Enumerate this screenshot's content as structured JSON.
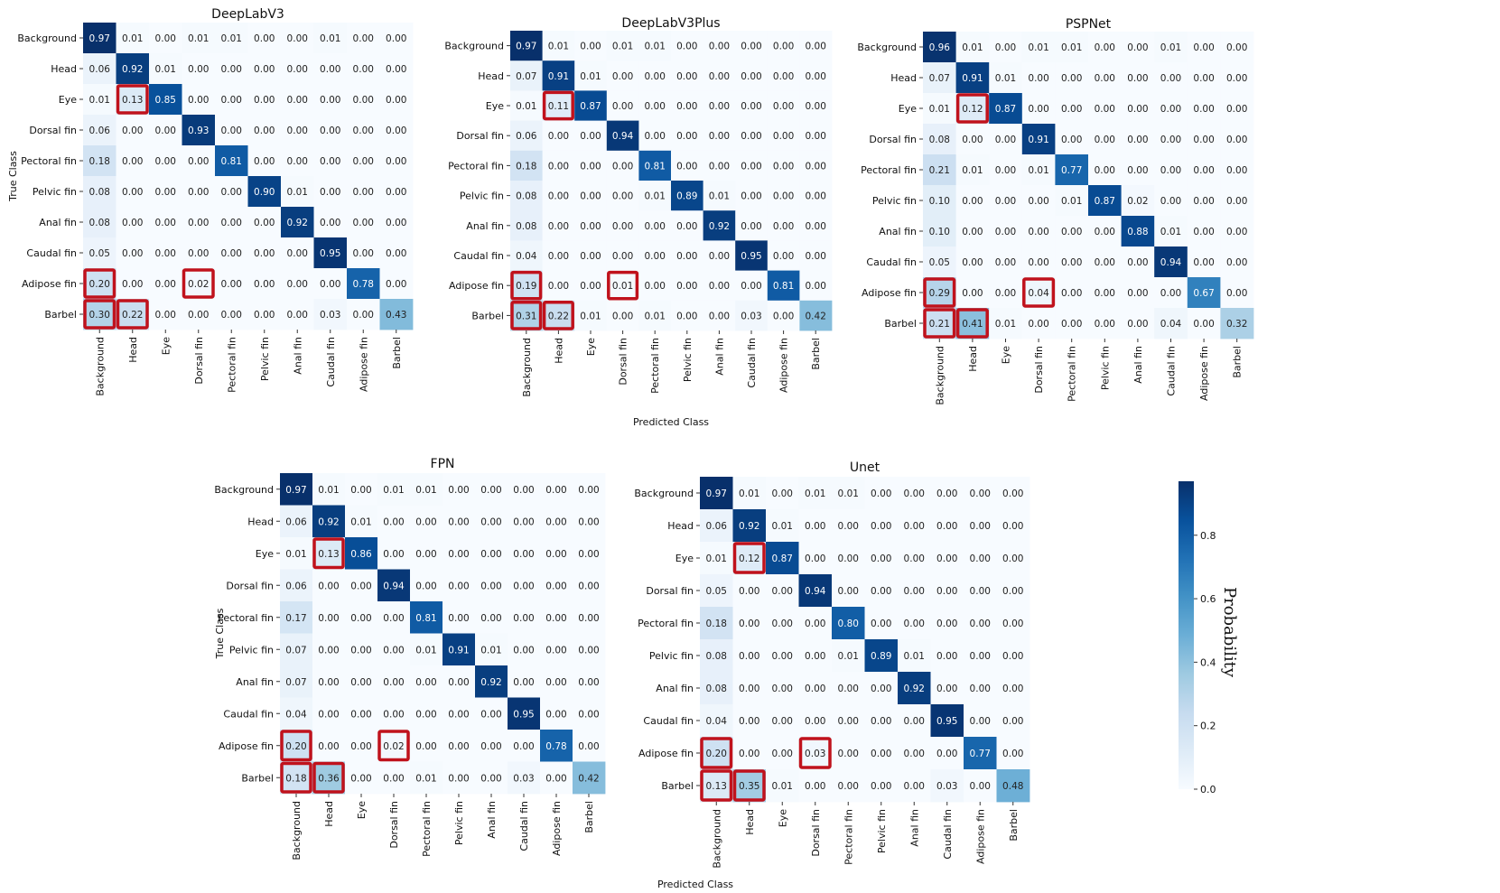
{
  "chart_data": [
    {
      "type": "heatmap",
      "title": "DeepLabV3",
      "ylabel": "True Class",
      "xlabel": "",
      "row_labels": [
        "Background",
        "Head",
        "Eye",
        "Dorsal fin",
        "Pectoral fin",
        "Pelvic fin",
        "Anal fin",
        "Caudal fin",
        "Adipose fin",
        "Barbel"
      ],
      "col_labels": [
        "Background",
        "Head",
        "Eye",
        "Dorsal fin",
        "Pectoral fin",
        "Pelvic fin",
        "Anal fin",
        "Caudal fin",
        "Adipose fin",
        "Barbel"
      ],
      "values": [
        [
          0.97,
          0.01,
          0.0,
          0.01,
          0.01,
          0.0,
          0.0,
          0.01,
          0.0,
          0.0
        ],
        [
          0.06,
          0.92,
          0.01,
          0.0,
          0.0,
          0.0,
          0.0,
          0.0,
          0.0,
          0.0
        ],
        [
          0.01,
          0.13,
          0.85,
          0.0,
          0.0,
          0.0,
          0.0,
          0.0,
          0.0,
          0.0
        ],
        [
          0.06,
          0.0,
          0.0,
          0.93,
          0.0,
          0.0,
          0.0,
          0.0,
          0.0,
          0.0
        ],
        [
          0.18,
          0.0,
          0.0,
          0.0,
          0.81,
          0.0,
          0.0,
          0.0,
          0.0,
          0.0
        ],
        [
          0.08,
          0.0,
          0.0,
          0.0,
          0.0,
          0.9,
          0.01,
          0.0,
          0.0,
          0.0
        ],
        [
          0.08,
          0.0,
          0.0,
          0.0,
          0.0,
          0.0,
          0.92,
          0.0,
          0.0,
          0.0
        ],
        [
          0.05,
          0.0,
          0.0,
          0.0,
          0.0,
          0.0,
          0.0,
          0.95,
          0.0,
          0.0
        ],
        [
          0.2,
          0.0,
          0.0,
          0.02,
          0.0,
          0.0,
          0.0,
          0.0,
          0.78,
          0.0
        ],
        [
          0.3,
          0.22,
          0.0,
          0.0,
          0.0,
          0.0,
          0.0,
          0.03,
          0.0,
          0.43
        ]
      ],
      "highlighted_cells": [
        [
          2,
          1
        ],
        [
          8,
          0
        ],
        [
          8,
          3
        ],
        [
          9,
          0
        ],
        [
          9,
          1
        ]
      ]
    },
    {
      "type": "heatmap",
      "title": "DeepLabV3Plus",
      "ylabel": "",
      "xlabel": "Predicted Class",
      "row_labels": [
        "Background",
        "Head",
        "Eye",
        "Dorsal fin",
        "Pectoral fin",
        "Pelvic fin",
        "Anal fin",
        "Caudal fin",
        "Adipose fin",
        "Barbel"
      ],
      "col_labels": [
        "Background",
        "Head",
        "Eye",
        "Dorsal fin",
        "Pectoral fin",
        "Pelvic fin",
        "Anal fin",
        "Caudal fin",
        "Adipose fin",
        "Barbel"
      ],
      "values": [
        [
          0.97,
          0.01,
          0.0,
          0.01,
          0.01,
          0.0,
          0.0,
          0.0,
          0.0,
          0.0
        ],
        [
          0.07,
          0.91,
          0.01,
          0.0,
          0.0,
          0.0,
          0.0,
          0.0,
          0.0,
          0.0
        ],
        [
          0.01,
          0.11,
          0.87,
          0.0,
          0.0,
          0.0,
          0.0,
          0.0,
          0.0,
          0.0
        ],
        [
          0.06,
          0.0,
          0.0,
          0.94,
          0.0,
          0.0,
          0.0,
          0.0,
          0.0,
          0.0
        ],
        [
          0.18,
          0.0,
          0.0,
          0.0,
          0.81,
          0.0,
          0.0,
          0.0,
          0.0,
          0.0
        ],
        [
          0.08,
          0.0,
          0.0,
          0.0,
          0.01,
          0.89,
          0.01,
          0.0,
          0.0,
          0.0
        ],
        [
          0.08,
          0.0,
          0.0,
          0.0,
          0.0,
          0.0,
          0.92,
          0.0,
          0.0,
          0.0
        ],
        [
          0.04,
          0.0,
          0.0,
          0.0,
          0.0,
          0.0,
          0.0,
          0.95,
          0.0,
          0.0
        ],
        [
          0.19,
          0.0,
          0.0,
          0.01,
          0.0,
          0.0,
          0.0,
          0.0,
          0.81,
          0.0
        ],
        [
          0.31,
          0.22,
          0.01,
          0.0,
          0.01,
          0.0,
          0.0,
          0.03,
          0.0,
          0.42
        ]
      ],
      "highlighted_cells": [
        [
          2,
          1
        ],
        [
          8,
          0
        ],
        [
          8,
          3
        ],
        [
          9,
          0
        ],
        [
          9,
          1
        ]
      ]
    },
    {
      "type": "heatmap",
      "title": "PSPNet",
      "ylabel": "",
      "xlabel": "",
      "row_labels": [
        "Background",
        "Head",
        "Eye",
        "Dorsal fin",
        "Pectoral fin",
        "Pelvic fin",
        "Anal fin",
        "Caudal fin",
        "Adipose fin",
        "Barbel"
      ],
      "col_labels": [
        "Background",
        "Head",
        "Eye",
        "Dorsal fin",
        "Pectoral fin",
        "Pelvic fin",
        "Anal fin",
        "Caudal fin",
        "Adipose fin",
        "Barbel"
      ],
      "values": [
        [
          0.96,
          0.01,
          0.0,
          0.01,
          0.01,
          0.0,
          0.0,
          0.01,
          0.0,
          0.0
        ],
        [
          0.07,
          0.91,
          0.01,
          0.0,
          0.0,
          0.0,
          0.0,
          0.0,
          0.0,
          0.0
        ],
        [
          0.01,
          0.12,
          0.87,
          0.0,
          0.0,
          0.0,
          0.0,
          0.0,
          0.0,
          0.0
        ],
        [
          0.08,
          0.0,
          0.0,
          0.91,
          0.0,
          0.0,
          0.0,
          0.0,
          0.0,
          0.0
        ],
        [
          0.21,
          0.01,
          0.0,
          0.01,
          0.77,
          0.0,
          0.0,
          0.0,
          0.0,
          0.0
        ],
        [
          0.1,
          0.0,
          0.0,
          0.0,
          0.01,
          0.87,
          0.02,
          0.0,
          0.0,
          0.0
        ],
        [
          0.1,
          0.0,
          0.0,
          0.0,
          0.0,
          0.0,
          0.88,
          0.01,
          0.0,
          0.0
        ],
        [
          0.05,
          0.0,
          0.0,
          0.0,
          0.0,
          0.0,
          0.0,
          0.94,
          0.0,
          0.0
        ],
        [
          0.29,
          0.0,
          0.0,
          0.04,
          0.0,
          0.0,
          0.0,
          0.0,
          0.67,
          0.0
        ],
        [
          0.21,
          0.41,
          0.01,
          0.0,
          0.0,
          0.0,
          0.0,
          0.04,
          0.0,
          0.32
        ]
      ],
      "highlighted_cells": [
        [
          2,
          1
        ],
        [
          8,
          0
        ],
        [
          8,
          3
        ],
        [
          9,
          0
        ],
        [
          9,
          1
        ]
      ]
    },
    {
      "type": "heatmap",
      "title": "FPN",
      "ylabel": "True Class",
      "xlabel": "",
      "row_labels": [
        "Background",
        "Head",
        "Eye",
        "Dorsal fin",
        "Pectoral fin",
        "Pelvic fin",
        "Anal fin",
        "Caudal fin",
        "Adipose fin",
        "Barbel"
      ],
      "col_labels": [
        "Background",
        "Head",
        "Eye",
        "Dorsal fin",
        "Pectoral fin",
        "Pelvic fin",
        "Anal fin",
        "Caudal fin",
        "Adipose fin",
        "Barbel"
      ],
      "values": [
        [
          0.97,
          0.01,
          0.0,
          0.01,
          0.01,
          0.0,
          0.0,
          0.0,
          0.0,
          0.0
        ],
        [
          0.06,
          0.92,
          0.01,
          0.0,
          0.0,
          0.0,
          0.0,
          0.0,
          0.0,
          0.0
        ],
        [
          0.01,
          0.13,
          0.86,
          0.0,
          0.0,
          0.0,
          0.0,
          0.0,
          0.0,
          0.0
        ],
        [
          0.06,
          0.0,
          0.0,
          0.94,
          0.0,
          0.0,
          0.0,
          0.0,
          0.0,
          0.0
        ],
        [
          0.17,
          0.0,
          0.0,
          0.0,
          0.81,
          0.0,
          0.0,
          0.0,
          0.0,
          0.0
        ],
        [
          0.07,
          0.0,
          0.0,
          0.0,
          0.01,
          0.91,
          0.01,
          0.0,
          0.0,
          0.0
        ],
        [
          0.07,
          0.0,
          0.0,
          0.0,
          0.0,
          0.0,
          0.92,
          0.0,
          0.0,
          0.0
        ],
        [
          0.04,
          0.0,
          0.0,
          0.0,
          0.0,
          0.0,
          0.0,
          0.95,
          0.0,
          0.0
        ],
        [
          0.2,
          0.0,
          0.0,
          0.02,
          0.0,
          0.0,
          0.0,
          0.0,
          0.78,
          0.0
        ],
        [
          0.18,
          0.36,
          0.0,
          0.0,
          0.01,
          0.0,
          0.0,
          0.03,
          0.0,
          0.42
        ]
      ],
      "highlighted_cells": [
        [
          2,
          1
        ],
        [
          8,
          0
        ],
        [
          8,
          3
        ],
        [
          9,
          0
        ],
        [
          9,
          1
        ]
      ]
    },
    {
      "type": "heatmap",
      "title": "Unet",
      "ylabel": "",
      "xlabel": "",
      "row_labels": [
        "Background",
        "Head",
        "Eye",
        "Dorsal fin",
        "Pectoral fin",
        "Pelvic fin",
        "Anal fin",
        "Caudal fin",
        "Adipose fin",
        "Barbel"
      ],
      "col_labels": [
        "Background",
        "Head",
        "Eye",
        "Dorsal fin",
        "Pectoral fin",
        "Pelvic fin",
        "Anal fin",
        "Caudal fin",
        "Adipose fin",
        "Barbel"
      ],
      "values": [
        [
          0.97,
          0.01,
          0.0,
          0.01,
          0.01,
          0.0,
          0.0,
          0.0,
          0.0,
          0.0
        ],
        [
          0.06,
          0.92,
          0.01,
          0.0,
          0.0,
          0.0,
          0.0,
          0.0,
          0.0,
          0.0
        ],
        [
          0.01,
          0.12,
          0.87,
          0.0,
          0.0,
          0.0,
          0.0,
          0.0,
          0.0,
          0.0
        ],
        [
          0.05,
          0.0,
          0.0,
          0.94,
          0.0,
          0.0,
          0.0,
          0.0,
          0.0,
          0.0
        ],
        [
          0.18,
          0.0,
          0.0,
          0.0,
          0.8,
          0.0,
          0.0,
          0.0,
          0.0,
          0.0
        ],
        [
          0.08,
          0.0,
          0.0,
          0.0,
          0.01,
          0.89,
          0.01,
          0.0,
          0.0,
          0.0
        ],
        [
          0.08,
          0.0,
          0.0,
          0.0,
          0.0,
          0.0,
          0.92,
          0.0,
          0.0,
          0.0
        ],
        [
          0.04,
          0.0,
          0.0,
          0.0,
          0.0,
          0.0,
          0.0,
          0.95,
          0.0,
          0.0
        ],
        [
          0.2,
          0.0,
          0.0,
          0.03,
          0.0,
          0.0,
          0.0,
          0.0,
          0.77,
          0.0
        ],
        [
          0.13,
          0.35,
          0.01,
          0.0,
          0.0,
          0.0,
          0.0,
          0.03,
          0.0,
          0.48
        ]
      ],
      "highlighted_cells": [
        [
          2,
          1
        ],
        [
          8,
          0
        ],
        [
          8,
          3
        ],
        [
          9,
          0
        ],
        [
          9,
          1
        ]
      ]
    }
  ],
  "bottom_xlabel": "Predicted Class",
  "colorbar": {
    "label": "Probability",
    "ticks": [
      0.0,
      0.2,
      0.4,
      0.6,
      0.8
    ],
    "tick_labels": [
      "0.0",
      "0.2",
      "0.4",
      "0.6",
      "0.8"
    ],
    "range": [
      0.0,
      0.97
    ],
    "colormap": "Blues"
  },
  "colors": {
    "highlight": "#c0121c",
    "cmap_stops": [
      "#f7fbff",
      "#deebf7",
      "#c6dbef",
      "#9ecae1",
      "#6baed6",
      "#4292c6",
      "#2171b5",
      "#08519c",
      "#08306b"
    ]
  }
}
